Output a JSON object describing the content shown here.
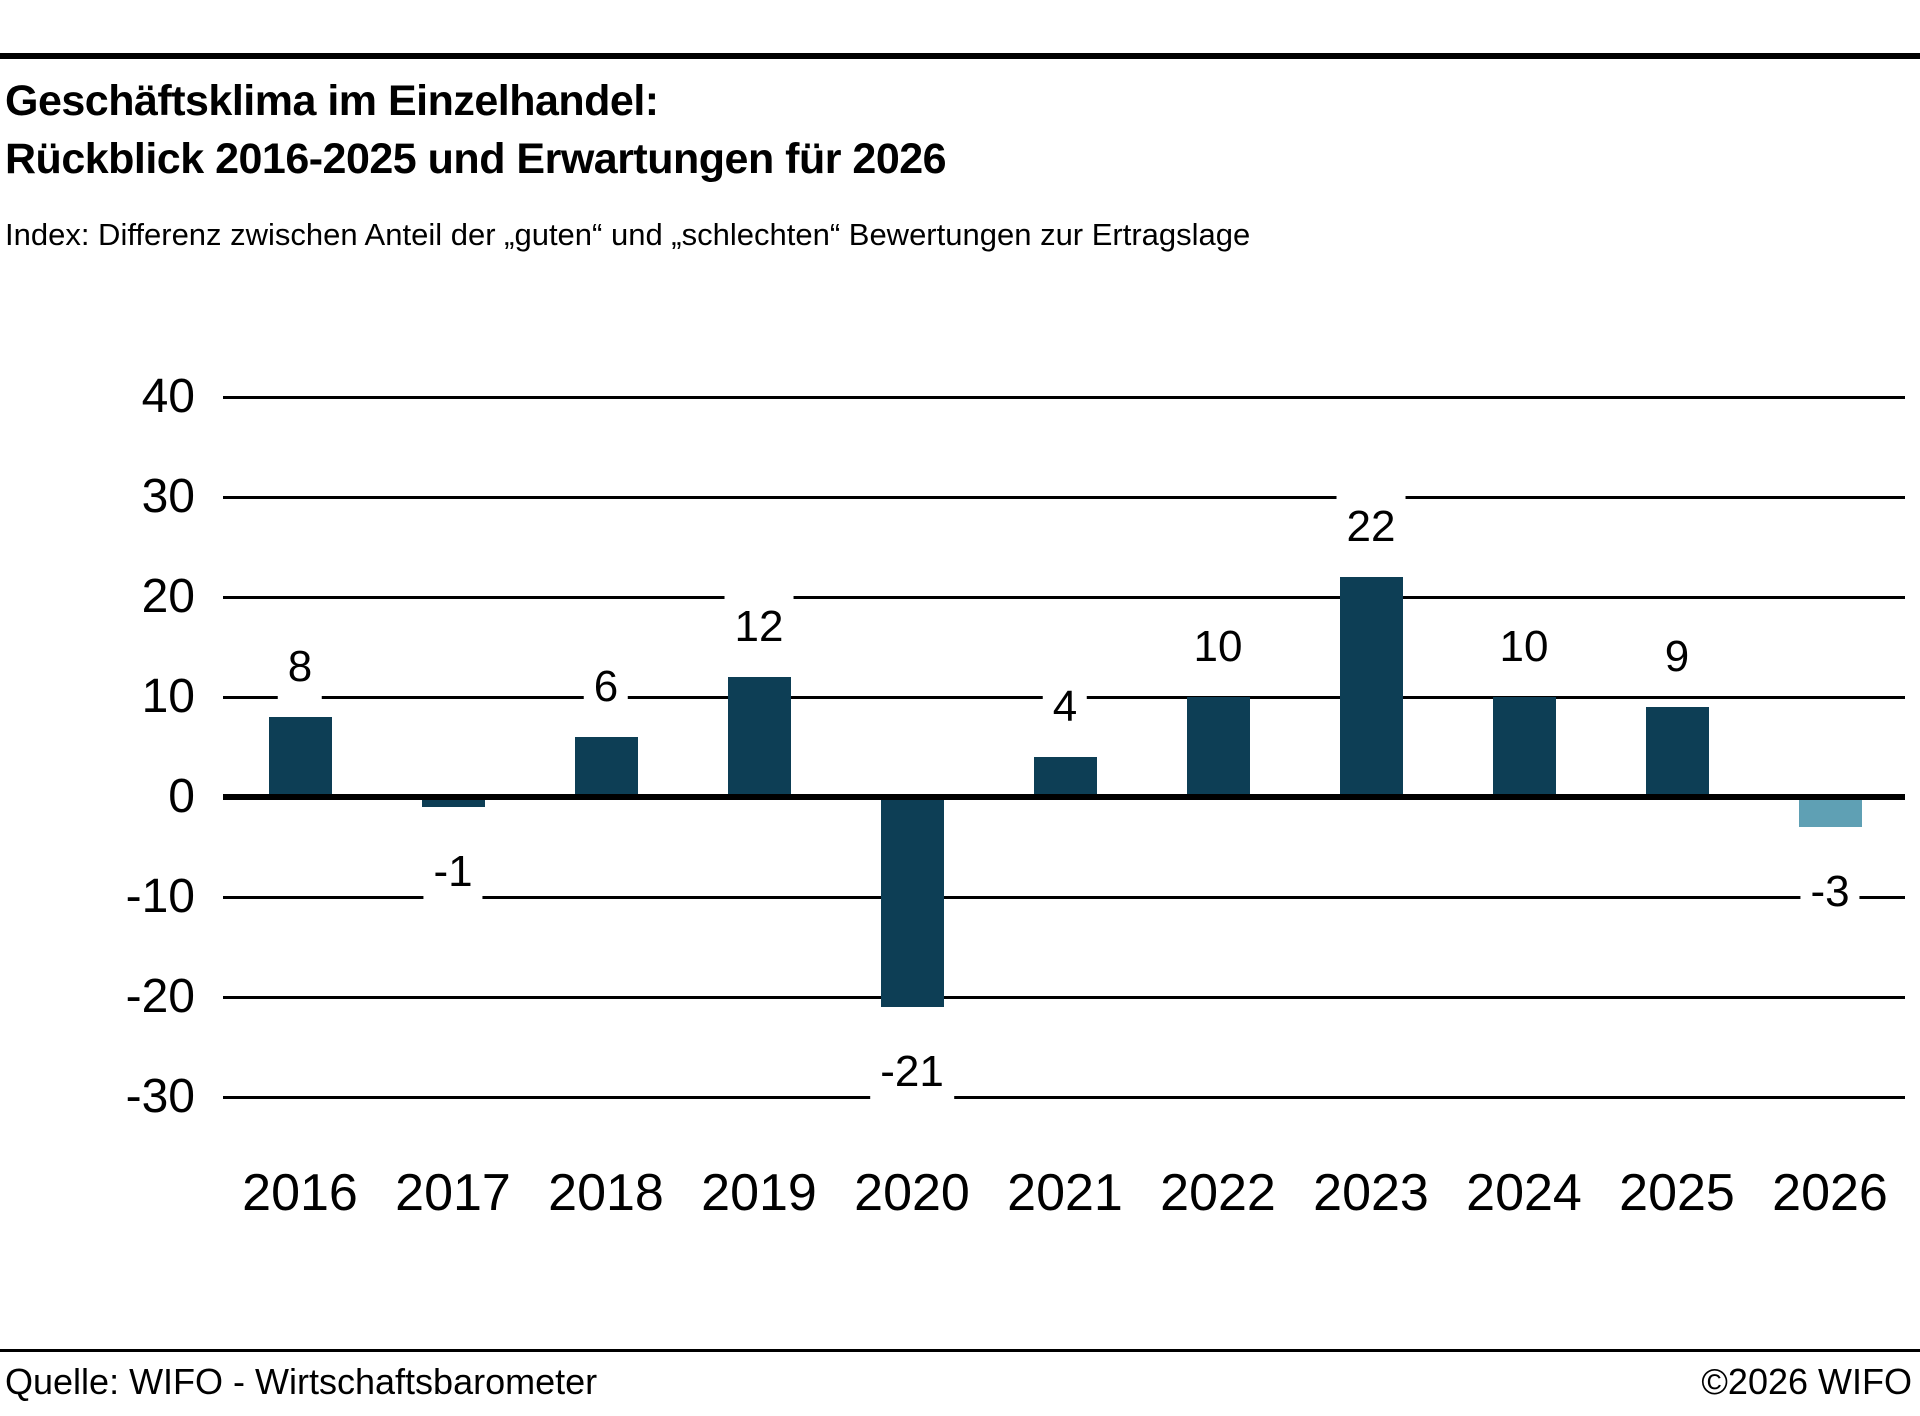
{
  "header": {
    "title_line1": "Geschäftsklima im Einzelhandel:",
    "title_line2": "Rückblick 2016-2025 und Erwartungen für 2026",
    "subtitle": "Index: Differenz zwischen Anteil der „guten“ und „schlechten“ Bewertungen zur Ertragslage"
  },
  "chart_data": {
    "type": "bar",
    "title": "Geschäftsklima im Einzelhandel: Rückblick 2016-2025 und Erwartungen für 2026",
    "subtitle": "Index: Differenz zwischen Anteil der „guten“ und „schlechten“ Bewertungen zur Ertragslage",
    "categories": [
      "2016",
      "2017",
      "2018",
      "2019",
      "2020",
      "2021",
      "2022",
      "2023",
      "2024",
      "2025",
      "2026"
    ],
    "values": [
      8,
      -1,
      6,
      12,
      -21,
      4,
      10,
      22,
      10,
      9,
      -3
    ],
    "value_labels": [
      "8",
      "-1",
      "6",
      "12",
      "-21",
      "4",
      "10",
      "22",
      "10",
      "9",
      "-3"
    ],
    "xlabel": "",
    "ylabel": "",
    "ylim": [
      -30,
      40
    ],
    "yticks": [
      40,
      30,
      20,
      10,
      0,
      -10,
      -20,
      -30
    ],
    "grid": true,
    "legend": "none",
    "bar_color": "#0d3e55",
    "forecast_bar_color": "#5fa0b4",
    "forecast_index": 10
  },
  "footer": {
    "source": "Quelle: WIFO - Wirtschaftsbarometer",
    "copyright": "©2026 WIFO"
  }
}
